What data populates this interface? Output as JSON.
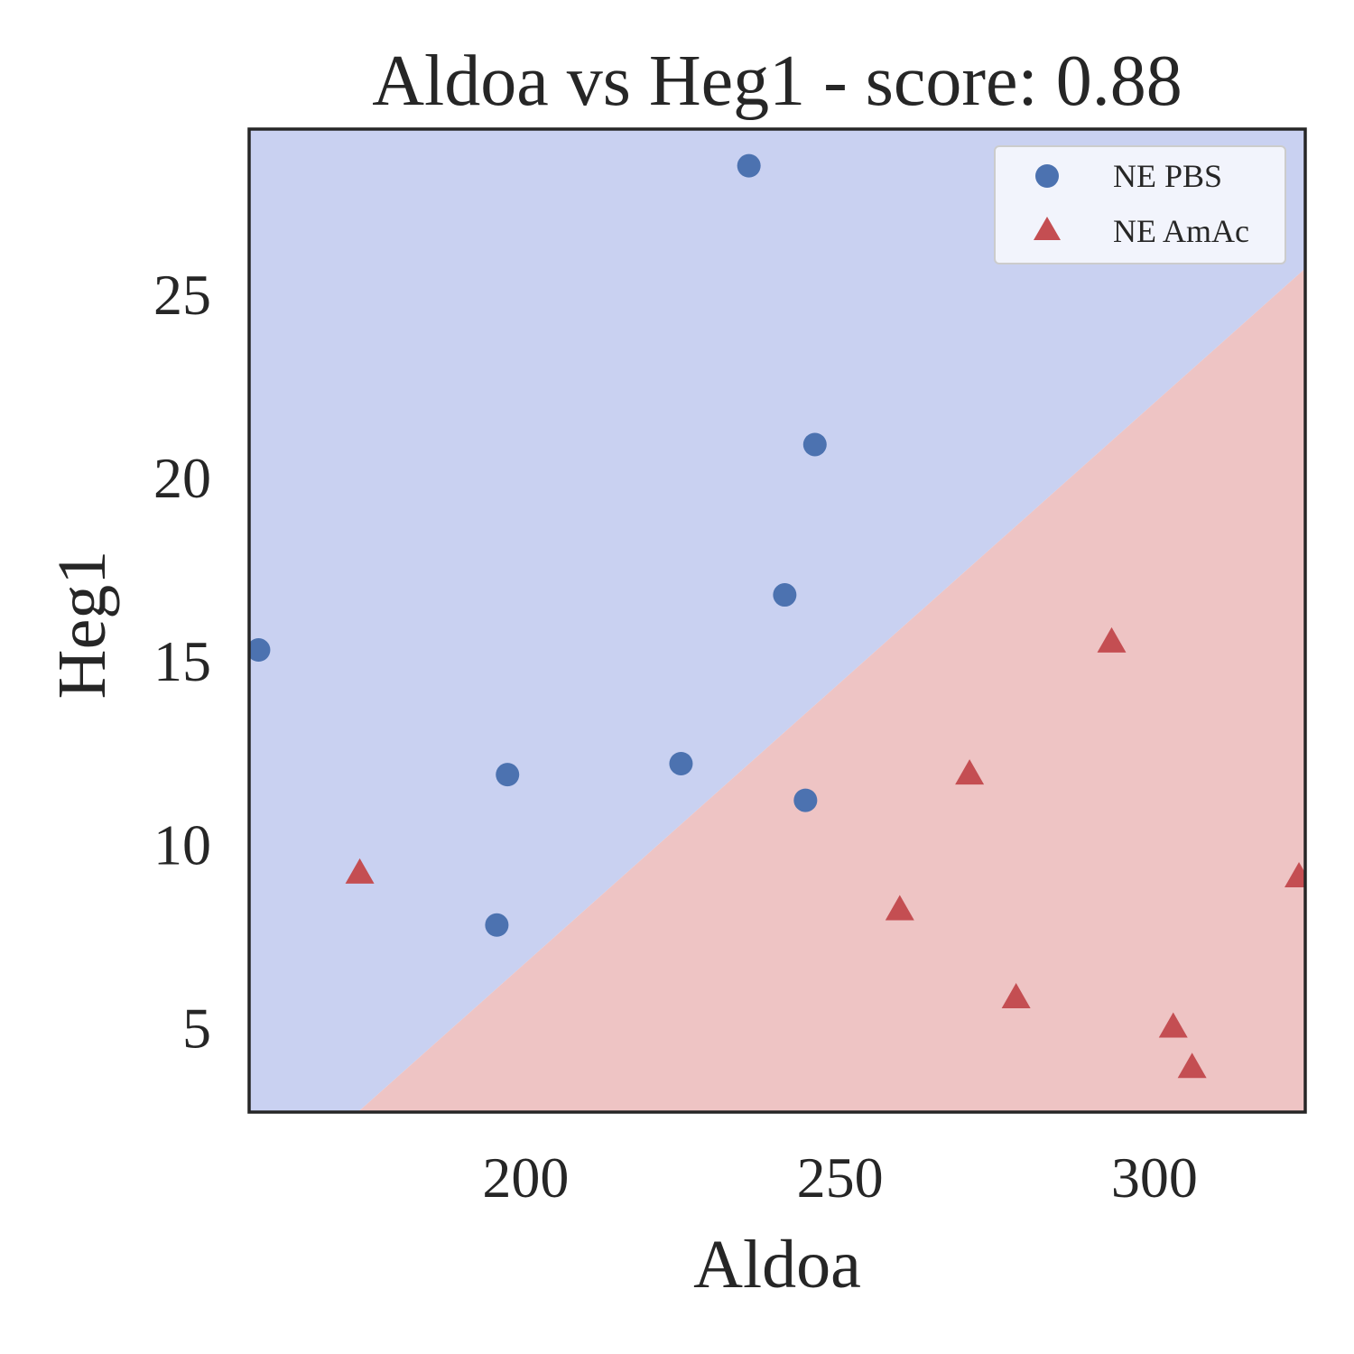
{
  "chart_data": {
    "type": "scatter",
    "title": "Aldoa vs Heg1 - score: 0.88",
    "xlabel": "Aldoa",
    "ylabel": "Heg1",
    "xlim": [
      156,
      324
    ],
    "ylim": [
      2.7,
      29.5
    ],
    "xticks": [
      200,
      250,
      300
    ],
    "yticks": [
      5,
      10,
      15,
      20,
      25
    ],
    "grid": false,
    "legend": {
      "placement": "top-right",
      "entries": [
        "NE PBS",
        "NE AmAc"
      ]
    },
    "regions": {
      "boundary": [
        [
          173.3,
          2.7
        ],
        [
          324,
          25.7
        ]
      ],
      "above": "NE PBS",
      "below": "NE AmAc",
      "above_color": "#c9d1f1",
      "below_color": "#eec4c4"
    },
    "series": [
      {
        "name": "NE PBS",
        "marker": "circle",
        "color": "#4c72b0",
        "points": [
          [
            157.5,
            15.3
          ],
          [
            195.4,
            7.8
          ],
          [
            197.1,
            11.9
          ],
          [
            224.7,
            12.2
          ],
          [
            235.5,
            28.5
          ],
          [
            241.2,
            16.8
          ],
          [
            244.5,
            11.2
          ],
          [
            246.0,
            20.9
          ]
        ]
      },
      {
        "name": "NE AmAc",
        "marker": "triangle",
        "color": "#c44e52",
        "points": [
          [
            173.6,
            9.2
          ],
          [
            259.5,
            8.2
          ],
          [
            270.6,
            11.9
          ],
          [
            278.0,
            5.8
          ],
          [
            293.2,
            15.5
          ],
          [
            303.0,
            5.0
          ],
          [
            306.0,
            3.9
          ],
          [
            323.0,
            9.1
          ]
        ]
      }
    ]
  }
}
